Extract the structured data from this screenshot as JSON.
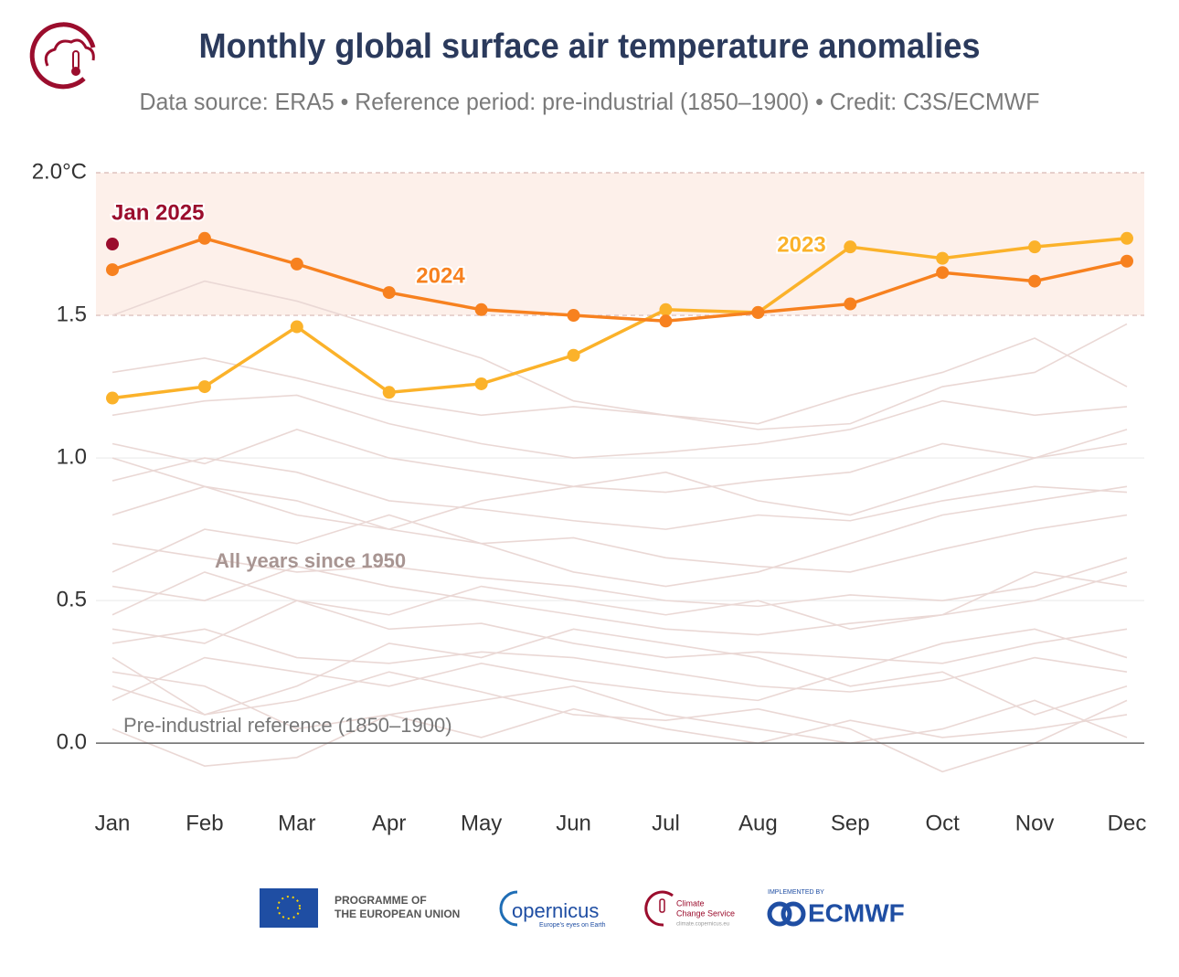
{
  "chart_data": {
    "type": "line",
    "title": "Monthly global surface air temperature anomalies",
    "subtitle": "Data source: ERA5 • Reference period: pre-industrial (1850–1900) • Credit: C3S/ECMWF",
    "categories": [
      "Jan",
      "Feb",
      "Mar",
      "Apr",
      "May",
      "Jun",
      "Jul",
      "Aug",
      "Sep",
      "Oct",
      "Nov",
      "Dec"
    ],
    "series": [
      {
        "name": "2024",
        "color": "#f7811f",
        "values": [
          1.66,
          1.77,
          1.68,
          1.58,
          1.52,
          1.5,
          1.48,
          1.51,
          1.54,
          1.65,
          1.62,
          1.69
        ]
      },
      {
        "name": "2023",
        "color": "#fbb22a",
        "values": [
          1.21,
          1.25,
          1.46,
          1.23,
          1.26,
          1.36,
          1.52,
          1.51,
          1.74,
          1.7,
          1.74,
          1.77
        ]
      },
      {
        "name": "Jan 2025",
        "color": "#9b0d2d",
        "values": [
          1.75,
          null,
          null,
          null,
          null,
          null,
          null,
          null,
          null,
          null,
          null,
          null
        ]
      }
    ],
    "background": {
      "name": "All years since 1950",
      "color": "#ead8d5",
      "series": [
        [
          0.05,
          -0.08,
          -0.05,
          0.1,
          0.02,
          0.12,
          0.05,
          0.0,
          0.08,
          0.02,
          0.05,
          0.1
        ],
        [
          0.2,
          0.1,
          0.15,
          0.25,
          0.18,
          0.1,
          0.08,
          0.12,
          0.05,
          -0.1,
          0.0,
          0.15
        ],
        [
          0.35,
          0.4,
          0.3,
          0.28,
          0.32,
          0.3,
          0.25,
          0.2,
          0.18,
          0.22,
          0.3,
          0.25
        ],
        [
          0.45,
          0.6,
          0.5,
          0.4,
          0.42,
          0.35,
          0.3,
          0.32,
          0.3,
          0.28,
          0.35,
          0.4
        ],
        [
          0.55,
          0.5,
          0.62,
          0.55,
          0.5,
          0.45,
          0.4,
          0.38,
          0.42,
          0.45,
          0.5,
          0.6
        ],
        [
          0.7,
          0.65,
          0.6,
          0.62,
          0.58,
          0.55,
          0.5,
          0.48,
          0.52,
          0.5,
          0.55,
          0.65
        ],
        [
          0.8,
          0.9,
          0.85,
          0.75,
          0.7,
          0.72,
          0.65,
          0.62,
          0.6,
          0.68,
          0.75,
          0.8
        ],
        [
          0.92,
          1.0,
          0.95,
          0.85,
          0.82,
          0.78,
          0.75,
          0.8,
          0.78,
          0.85,
          0.9,
          0.88
        ],
        [
          1.05,
          0.98,
          1.1,
          1.0,
          0.95,
          0.9,
          0.88,
          0.92,
          0.95,
          1.05,
          1.0,
          1.1
        ],
        [
          1.15,
          1.2,
          1.22,
          1.12,
          1.05,
          1.0,
          1.02,
          1.05,
          1.1,
          1.2,
          1.15,
          1.18
        ],
        [
          1.3,
          1.35,
          1.28,
          1.2,
          1.15,
          1.18,
          1.15,
          1.12,
          1.22,
          1.3,
          1.42,
          1.25
        ],
        [
          1.5,
          1.62,
          1.55,
          1.45,
          1.35,
          1.2,
          1.15,
          1.1,
          1.12,
          1.25,
          1.3,
          1.47
        ],
        [
          0.3,
          0.1,
          0.2,
          0.35,
          0.3,
          0.4,
          0.35,
          0.3,
          0.2,
          0.25,
          0.1,
          0.2
        ],
        [
          0.6,
          0.75,
          0.7,
          0.8,
          0.7,
          0.6,
          0.55,
          0.6,
          0.7,
          0.8,
          0.85,
          0.9
        ],
        [
          0.15,
          0.3,
          0.25,
          0.2,
          0.28,
          0.22,
          0.18,
          0.15,
          0.25,
          0.35,
          0.4,
          0.3
        ],
        [
          1.0,
          0.9,
          0.8,
          0.75,
          0.85,
          0.9,
          0.95,
          0.85,
          0.8,
          0.9,
          1.0,
          1.05
        ],
        [
          0.4,
          0.35,
          0.5,
          0.45,
          0.55,
          0.5,
          0.45,
          0.5,
          0.4,
          0.45,
          0.6,
          0.55
        ],
        [
          0.25,
          0.2,
          0.05,
          0.1,
          0.15,
          0.2,
          0.1,
          0.05,
          0.0,
          0.05,
          0.15,
          0.02
        ]
      ]
    },
    "reference": {
      "value": 0,
      "label": "Pre-industrial reference (1850–1900)"
    },
    "highlight_range": [
      1.5,
      2.0
    ],
    "ylim": [
      -0.2,
      2.0
    ],
    "yticks": [
      {
        "value": 0,
        "label": "0.0"
      },
      0.5,
      {
        "value": 1,
        "label": "1.0"
      },
      1.5,
      {
        "value": 2,
        "label": "2.0°C"
      }
    ],
    "grid": true
  },
  "footer": {
    "eu": "PROGRAMME OF",
    "eu2": "THE EUROPEAN UNION",
    "copernicus": "opernicus",
    "copernicus_tag": "Europe's eyes on Earth",
    "ccs": "Climate",
    "ccs2": "Change Service",
    "ccs_url": "climate.copernicus.eu",
    "implemented": "IMPLEMENTED BY",
    "ecmwf": "ECMWF"
  }
}
